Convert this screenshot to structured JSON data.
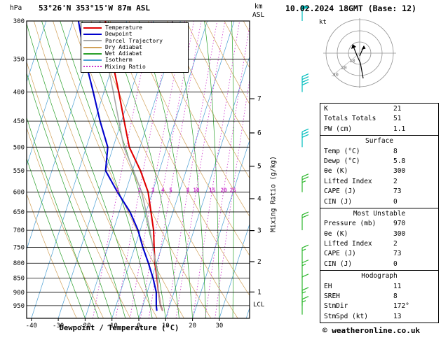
{
  "header": {
    "pressure_unit": "hPa",
    "station": "53°26'N 353°15'W 87m ASL",
    "alt_unit_line1": "km",
    "alt_unit_line2": "ASL",
    "datetime": "10.02.2024 18GMT (Base: 12)"
  },
  "legend": {
    "items": [
      {
        "label": "Temperature",
        "color": "#e00000",
        "style": "solid"
      },
      {
        "label": "Dewpoint",
        "color": "#0000cd",
        "style": "solid"
      },
      {
        "label": "Parcel Trajectory",
        "color": "#a8a8a8",
        "style": "solid"
      },
      {
        "label": "Dry Adiabat",
        "color": "#d2a25a",
        "style": "solid"
      },
      {
        "label": "Wet Adiabat",
        "color": "#2aa02a",
        "style": "solid"
      },
      {
        "label": "Isotherm",
        "color": "#4b9fd4",
        "style": "solid"
      },
      {
        "label": "Mixing Ratio",
        "color": "#cc33cc",
        "style": "dotted"
      }
    ]
  },
  "axes": {
    "xlabel": "Dewpoint / Temperature (°C)",
    "right_label": "Mixing Ratio (g/kg)",
    "lcl_label": "LCL"
  },
  "chart_data": {
    "type": "line",
    "variant": "skew-t-log-p-sounding",
    "title": "53°26'N 353°15'W 87m ASL — 10.02.2024 18GMT (Base: 12)",
    "y_axis": {
      "label": "hPa",
      "scale": "log",
      "range": [
        300,
        1000
      ],
      "ticks": [
        300,
        350,
        400,
        450,
        500,
        550,
        600,
        650,
        700,
        750,
        800,
        850,
        900,
        950
      ]
    },
    "x_axis": {
      "label": "Dewpoint / Temperature (°C)",
      "ticks": [
        -40,
        -30,
        -20,
        -10,
        0,
        10,
        20,
        30
      ]
    },
    "km_asl_ticks": [
      7,
      6,
      5,
      4,
      3,
      2,
      1
    ],
    "mixing_ratio_lines_g_kg": [
      1,
      2,
      3,
      4,
      5,
      8,
      10,
      15,
      20,
      25
    ],
    "lcl_pressure_hpa": 945,
    "pressure_hpa": [
      970,
      950,
      925,
      900,
      850,
      800,
      750,
      700,
      650,
      600,
      550,
      500,
      450,
      400,
      350,
      300
    ],
    "series": [
      {
        "name": "Temperature",
        "color": "#e00000",
        "values": [
          8.0,
          6.6,
          5.4,
          4.2,
          2.0,
          -0.6,
          -2.8,
          -5.0,
          -8.2,
          -11.6,
          -17.0,
          -24.0,
          -29.0,
          -34.5,
          -41.0,
          -48.0
        ]
      },
      {
        "name": "Dewpoint",
        "color": "#0000cd",
        "values": [
          5.8,
          5.0,
          4.2,
          3.4,
          0.5,
          -3.0,
          -7.0,
          -10.8,
          -16.0,
          -23.0,
          -30.0,
          -32.0,
          -38.0,
          -44.0,
          -51.0,
          -58.0
        ]
      },
      {
        "name": "Parcel Trajectory",
        "color": "#a8a8a8",
        "values": [
          8.0,
          6.6,
          5.4,
          4.2,
          2.2,
          -0.4,
          -3.2,
          -6.4,
          -10.0,
          -14.0,
          -19.6,
          -26.0,
          -31.0,
          -36.5,
          -43.0,
          -50.0
        ]
      }
    ],
    "wind_barbs": [
      {
        "p": 300,
        "kt": 50
      },
      {
        "p": 400,
        "kt": 40
      },
      {
        "p": 500,
        "kt": 30
      },
      {
        "p": 600,
        "kt": 25
      },
      {
        "p": 700,
        "kt": 20
      },
      {
        "p": 800,
        "kt": 15
      },
      {
        "p": 850,
        "kt": 15
      },
      {
        "p": 900,
        "kt": 10
      },
      {
        "p": 950,
        "kt": 15
      },
      {
        "p": 985,
        "kt": 13
      }
    ],
    "wind_barb_colors": {
      "upper": "#00bdbd",
      "lower": "#2eb82e"
    }
  },
  "hodograph": {
    "unit_label": "kt",
    "ring_labels": [
      "10",
      "20",
      "30"
    ]
  },
  "table": {
    "indices": {
      "rows": [
        {
          "label": "K",
          "value": "21"
        },
        {
          "label": "Totals Totals",
          "value": "51"
        },
        {
          "label": "PW (cm)",
          "value": "1.1"
        }
      ]
    },
    "surface": {
      "title": "Surface",
      "rows": [
        {
          "label": "Temp (°C)",
          "value": "8"
        },
        {
          "label": "Dewp (°C)",
          "value": "5.8"
        },
        {
          "label": "θe (K)",
          "value": "300"
        },
        {
          "label": "Lifted Index",
          "value": "2"
        },
        {
          "label": "CAPE (J)",
          "value": "73"
        },
        {
          "label": "CIN (J)",
          "value": "0"
        }
      ]
    },
    "most_unstable": {
      "title": "Most Unstable",
      "rows": [
        {
          "label": "Pressure (mb)",
          "value": "970"
        },
        {
          "label": "θe (K)",
          "value": "300"
        },
        {
          "label": "Lifted Index",
          "value": "2"
        },
        {
          "label": "CAPE (J)",
          "value": "73"
        },
        {
          "label": "CIN (J)",
          "value": "0"
        }
      ]
    },
    "hodograph_section": {
      "title": "Hodograph",
      "rows": [
        {
          "label": "EH",
          "value": "11"
        },
        {
          "label": "SREH",
          "value": "8"
        },
        {
          "label": "StmDir",
          "value": "172°"
        },
        {
          "label": "StmSpd (kt)",
          "value": "13"
        }
      ]
    }
  },
  "footer": {
    "copyright": "© weatheronline.co.uk"
  }
}
